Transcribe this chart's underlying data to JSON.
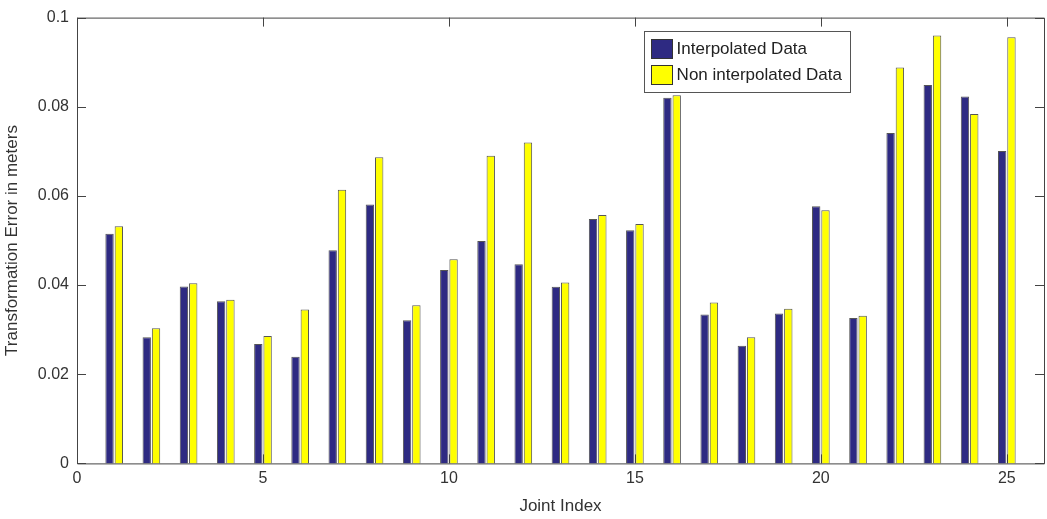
{
  "chart_data": {
    "type": "bar",
    "xlabel": "Joint Index",
    "ylabel": "Transformation Error in meters",
    "x": [
      1,
      2,
      3,
      4,
      5,
      6,
      7,
      8,
      9,
      10,
      11,
      12,
      13,
      14,
      15,
      16,
      17,
      18,
      19,
      20,
      21,
      22,
      23,
      24,
      25
    ],
    "series": [
      {
        "name": "Interpolated Data",
        "color": "#2e2a82",
        "values": [
          0.0515,
          0.0283,
          0.0397,
          0.0364,
          0.0268,
          0.0239,
          0.0478,
          0.0581,
          0.0321,
          0.0434,
          0.0499,
          0.0447,
          0.0396,
          0.0548,
          0.0523,
          0.082,
          0.0334,
          0.0264,
          0.0336,
          0.0577,
          0.0326,
          0.0741,
          0.0849,
          0.0823,
          0.0701
        ]
      },
      {
        "name": "Non interpolated Data",
        "color": "#ffff00",
        "values": [
          0.0532,
          0.0303,
          0.0404,
          0.0367,
          0.0286,
          0.0345,
          0.0614,
          0.0687,
          0.0355,
          0.0458,
          0.069,
          0.072,
          0.0406,
          0.0557,
          0.0537,
          0.0826,
          0.0361,
          0.0283,
          0.0347,
          0.0568,
          0.0331,
          0.0888,
          0.096,
          0.0784,
          0.0956
        ]
      }
    ],
    "xlim": [
      0,
      26
    ],
    "xticks": [
      0,
      5,
      10,
      15,
      20,
      25
    ],
    "ylim": [
      0,
      0.1
    ],
    "yticks": [
      0,
      0.02,
      0.04,
      0.06,
      0.08,
      0.1
    ],
    "legend": "top right"
  }
}
